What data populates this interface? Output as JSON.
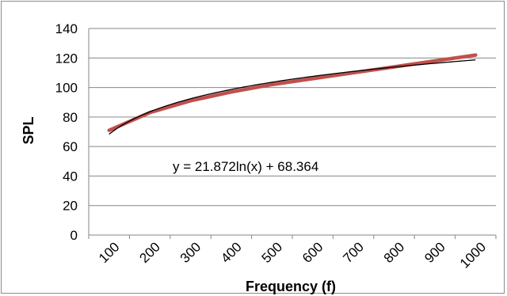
{
  "chart_data": {
    "type": "line",
    "title": "",
    "xlabel": "Frequency (f)",
    "ylabel": "SPL",
    "categories": [
      "100",
      "200",
      "300",
      "400",
      "500",
      "600",
      "700",
      "800",
      "900",
      "1000"
    ],
    "x": [
      1,
      2,
      3,
      4,
      5,
      6,
      7,
      8,
      9,
      10
    ],
    "ylim": [
      0,
      140
    ],
    "yticks": [
      "0",
      "20",
      "40",
      "60",
      "80",
      "100",
      "120",
      "140"
    ],
    "grid": "horizontal",
    "legend": "none",
    "series": [
      {
        "values": [
          71,
          83,
          91,
          97,
          102,
          106,
          110,
          114,
          118,
          122
        ],
        "color": "#c0504d"
      }
    ],
    "trendline": {
      "type": "logarithmic",
      "equation": "y = 21.872ln(x) + 68.364",
      "a": 21.872,
      "b": 68.364,
      "color": "#000000"
    }
  }
}
